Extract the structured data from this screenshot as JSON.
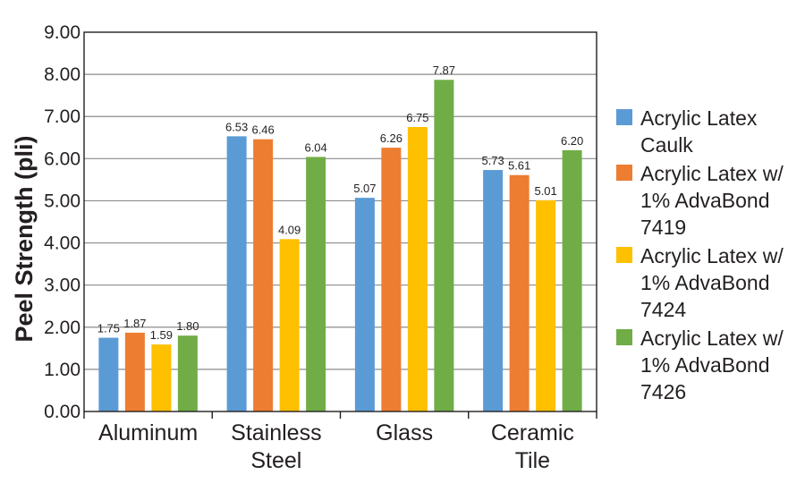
{
  "chart_data": {
    "type": "bar",
    "title": "",
    "xlabel": "",
    "ylabel": "Peel Strength (pli)",
    "ylim": [
      0,
      9
    ],
    "ytick_step": 1,
    "ytick_labels": [
      "0.00",
      "1.00",
      "2.00",
      "3.00",
      "4.00",
      "5.00",
      "6.00",
      "7.00",
      "8.00",
      "9.00"
    ],
    "grid": true,
    "legend_position": "right",
    "categories": [
      [
        "Aluminum"
      ],
      [
        "Stainless",
        "Steel"
      ],
      [
        "Glass"
      ],
      [
        "Ceramic",
        "Tile"
      ]
    ],
    "series": [
      {
        "name": [
          "Acrylic Latex",
          "Caulk"
        ],
        "color": "#5b9bd5",
        "values": [
          1.75,
          6.53,
          5.07,
          5.73
        ],
        "labels": [
          "1.75",
          "6.53",
          "5.07",
          "5.73"
        ]
      },
      {
        "name": [
          "Acrylic Latex w/",
          "1% AdvaBond",
          "7419"
        ],
        "color": "#ed7d31",
        "values": [
          1.87,
          6.46,
          6.26,
          5.61
        ],
        "labels": [
          "1.87",
          "6.46",
          "6.26",
          "5.61"
        ]
      },
      {
        "name": [
          "Acrylic Latex w/",
          "1% AdvaBond",
          "7424"
        ],
        "color": "#ffc000",
        "values": [
          1.59,
          4.09,
          6.75,
          5.01
        ],
        "labels": [
          "1.59",
          "4.09",
          "6.75",
          "5.01"
        ]
      },
      {
        "name": [
          "Acrylic Latex w/",
          "1% AdvaBond",
          "7426"
        ],
        "color": "#70ad47",
        "values": [
          1.8,
          6.04,
          7.87,
          6.2
        ],
        "labels": [
          "1.80",
          "6.04",
          "7.87",
          "6.20"
        ]
      }
    ]
  }
}
